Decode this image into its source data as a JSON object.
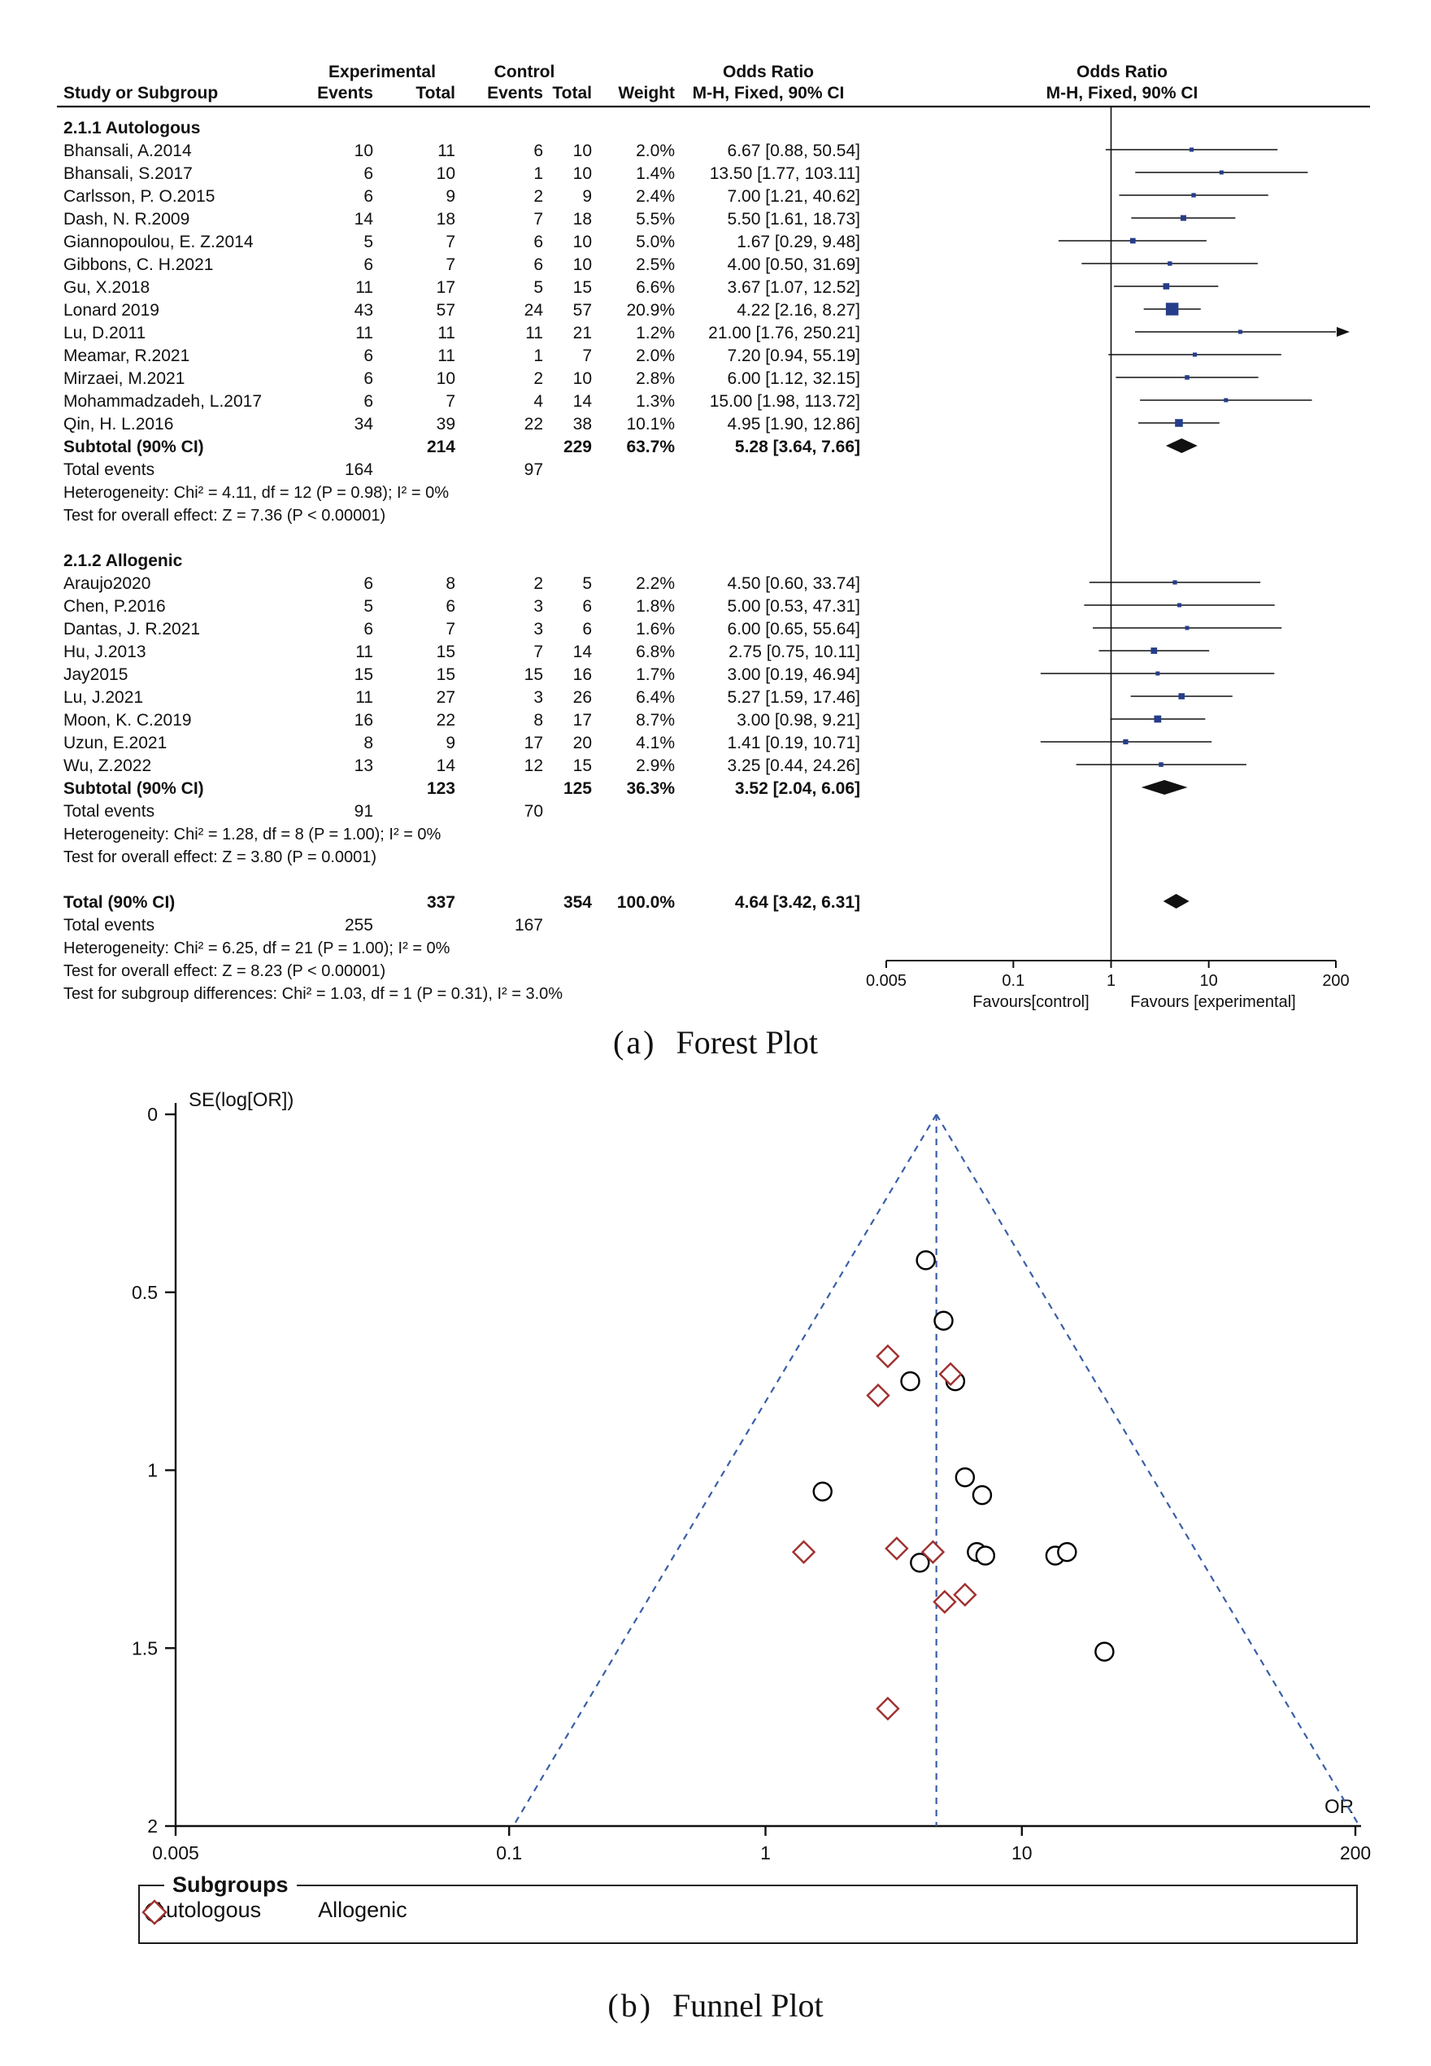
{
  "colors": {
    "text": "#111111",
    "forest_square": "#253D8A",
    "summary_diamond": "#111111",
    "funnel_line": "#3A5FA8",
    "autologous_marker": "#000000",
    "allogenic_marker": "#A03030"
  },
  "captions": {
    "a": {
      "prefix": "(a)",
      "title": "Forest Plot"
    },
    "b": {
      "prefix": "(b)",
      "title": "Funnel Plot"
    }
  },
  "chart_data": [
    {
      "type": "table",
      "subtype": "forest-plot",
      "title": "Forest Plot",
      "effect_measure": "Odds Ratio M-H, Fixed, 90% CI",
      "headers": {
        "group_experimental": "Experimental",
        "group_control": "Control",
        "study": "Study or Subgroup",
        "events": "Events",
        "total": "Total",
        "weight": "Weight",
        "odds_ratio": "Odds Ratio",
        "method": "M-H, Fixed, 90% CI"
      },
      "rows": [
        {
          "type": "section",
          "label": "2.1.1 Autologous"
        },
        {
          "type": "study",
          "label": "Bhansali, A.2014",
          "ee": "10",
          "et": "11",
          "ce": "6",
          "ct": "10",
          "w": "2.0%",
          "ci": "6.67 [0.88, 50.54]",
          "or": 6.67,
          "lo": 0.88,
          "hi": 50.54,
          "wv": 2.0
        },
        {
          "type": "study",
          "label": "Bhansali, S.2017",
          "ee": "6",
          "et": "10",
          "ce": "1",
          "ct": "10",
          "w": "1.4%",
          "ci": "13.50 [1.77, 103.11]",
          "or": 13.5,
          "lo": 1.77,
          "hi": 103.11,
          "wv": 1.4
        },
        {
          "type": "study",
          "label": "Carlsson, P. O.2015",
          "ee": "6",
          "et": "9",
          "ce": "2",
          "ct": "9",
          "w": "2.4%",
          "ci": "7.00 [1.21, 40.62]",
          "or": 7.0,
          "lo": 1.21,
          "hi": 40.62,
          "wv": 2.4
        },
        {
          "type": "study",
          "label": "Dash, N. R.2009",
          "ee": "14",
          "et": "18",
          "ce": "7",
          "ct": "18",
          "w": "5.5%",
          "ci": "5.50 [1.61, 18.73]",
          "or": 5.5,
          "lo": 1.61,
          "hi": 18.73,
          "wv": 5.5
        },
        {
          "type": "study",
          "label": "Giannopoulou, E. Z.2014",
          "ee": "5",
          "et": "7",
          "ce": "6",
          "ct": "10",
          "w": "5.0%",
          "ci": "1.67 [0.29, 9.48]",
          "or": 1.67,
          "lo": 0.29,
          "hi": 9.48,
          "wv": 5.0
        },
        {
          "type": "study",
          "label": "Gibbons, C. H.2021",
          "ee": "6",
          "et": "7",
          "ce": "6",
          "ct": "10",
          "w": "2.5%",
          "ci": "4.00 [0.50, 31.69]",
          "or": 4.0,
          "lo": 0.5,
          "hi": 31.69,
          "wv": 2.5
        },
        {
          "type": "study",
          "label": "Gu, X.2018",
          "ee": "11",
          "et": "17",
          "ce": "5",
          "ct": "15",
          "w": "6.6%",
          "ci": "3.67 [1.07, 12.52]",
          "or": 3.67,
          "lo": 1.07,
          "hi": 12.52,
          "wv": 6.6
        },
        {
          "type": "study",
          "label": "Lonard 2019",
          "ee": "43",
          "et": "57",
          "ce": "24",
          "ct": "57",
          "w": "20.9%",
          "ci": "4.22 [2.16, 8.27]",
          "or": 4.22,
          "lo": 2.16,
          "hi": 8.27,
          "wv": 20.9
        },
        {
          "type": "study",
          "label": "Lu, D.2011",
          "ee": "11",
          "et": "11",
          "ce": "11",
          "ct": "21",
          "w": "1.2%",
          "ci": "21.00 [1.76, 250.21]",
          "or": 21.0,
          "lo": 1.76,
          "hi": 250.21,
          "wv": 1.2
        },
        {
          "type": "study",
          "label": "Meamar, R.2021",
          "ee": "6",
          "et": "11",
          "ce": "1",
          "ct": "7",
          "w": "2.0%",
          "ci": "7.20 [0.94, 55.19]",
          "or": 7.2,
          "lo": 0.94,
          "hi": 55.19,
          "wv": 2.0
        },
        {
          "type": "study",
          "label": "Mirzaei, M.2021",
          "ee": "6",
          "et": "10",
          "ce": "2",
          "ct": "10",
          "w": "2.8%",
          "ci": "6.00 [1.12, 32.15]",
          "or": 6.0,
          "lo": 1.12,
          "hi": 32.15,
          "wv": 2.8
        },
        {
          "type": "study",
          "label": "Mohammadzadeh, L.2017",
          "ee": "6",
          "et": "7",
          "ce": "4",
          "ct": "14",
          "w": "1.3%",
          "ci": "15.00 [1.98, 113.72]",
          "or": 15.0,
          "lo": 1.98,
          "hi": 113.72,
          "wv": 1.3
        },
        {
          "type": "study",
          "label": "Qin, H. L.2016",
          "ee": "34",
          "et": "39",
          "ce": "22",
          "ct": "38",
          "w": "10.1%",
          "ci": "4.95 [1.90, 12.86]",
          "or": 4.95,
          "lo": 1.9,
          "hi": 12.86,
          "wv": 10.1
        },
        {
          "type": "subtotal",
          "label": "Subtotal (90% CI)",
          "et": "214",
          "ct": "229",
          "w": "63.7%",
          "ci": "5.28 [3.64, 7.66]",
          "or": 5.28,
          "lo": 3.64,
          "hi": 7.66
        },
        {
          "type": "events",
          "label": "Total events",
          "ee": "164",
          "ce": "97"
        },
        {
          "type": "note",
          "label": "Heterogeneity: Chi² = 4.11, df = 12 (P = 0.98); I² = 0%"
        },
        {
          "type": "note",
          "label": "Test for overall effect: Z = 7.36 (P < 0.00001)"
        },
        {
          "type": "blank"
        },
        {
          "type": "section",
          "label": "2.1.2 Allogenic"
        },
        {
          "type": "study",
          "label": "Araujo2020",
          "ee": "6",
          "et": "8",
          "ce": "2",
          "ct": "5",
          "w": "2.2%",
          "ci": "4.50 [0.60, 33.74]",
          "or": 4.5,
          "lo": 0.6,
          "hi": 33.74,
          "wv": 2.2
        },
        {
          "type": "study",
          "label": "Chen, P.2016",
          "ee": "5",
          "et": "6",
          "ce": "3",
          "ct": "6",
          "w": "1.8%",
          "ci": "5.00 [0.53, 47.31]",
          "or": 5.0,
          "lo": 0.53,
          "hi": 47.31,
          "wv": 1.8
        },
        {
          "type": "study",
          "label": "Dantas, J. R.2021",
          "ee": "6",
          "et": "7",
          "ce": "3",
          "ct": "6",
          "w": "1.6%",
          "ci": "6.00 [0.65, 55.64]",
          "or": 6.0,
          "lo": 0.65,
          "hi": 55.64,
          "wv": 1.6
        },
        {
          "type": "study",
          "label": "Hu, J.2013",
          "ee": "11",
          "et": "15",
          "ce": "7",
          "ct": "14",
          "w": "6.8%",
          "ci": "2.75 [0.75, 10.11]",
          "or": 2.75,
          "lo": 0.75,
          "hi": 10.11,
          "wv": 6.8
        },
        {
          "type": "study",
          "label": "Jay2015",
          "ee": "15",
          "et": "15",
          "ce": "15",
          "ct": "16",
          "w": "1.7%",
          "ci": "3.00 [0.19, 46.94]",
          "or": 3.0,
          "lo": 0.19,
          "hi": 46.94,
          "wv": 1.7
        },
        {
          "type": "study",
          "label": "Lu, J.2021",
          "ee": "11",
          "et": "27",
          "ce": "3",
          "ct": "26",
          "w": "6.4%",
          "ci": "5.27 [1.59, 17.46]",
          "or": 5.27,
          "lo": 1.59,
          "hi": 17.46,
          "wv": 6.4
        },
        {
          "type": "study",
          "label": "Moon, K. C.2019",
          "ee": "16",
          "et": "22",
          "ce": "8",
          "ct": "17",
          "w": "8.7%",
          "ci": "3.00 [0.98, 9.21]",
          "or": 3.0,
          "lo": 0.98,
          "hi": 9.21,
          "wv": 8.7
        },
        {
          "type": "study",
          "label": "Uzun, E.2021",
          "ee": "8",
          "et": "9",
          "ce": "17",
          "ct": "20",
          "w": "4.1%",
          "ci": "1.41 [0.19, 10.71]",
          "or": 1.41,
          "lo": 0.19,
          "hi": 10.71,
          "wv": 4.1
        },
        {
          "type": "study",
          "label": "Wu, Z.2022",
          "ee": "13",
          "et": "14",
          "ce": "12",
          "ct": "15",
          "w": "2.9%",
          "ci": "3.25 [0.44, 24.26]",
          "or": 3.25,
          "lo": 0.44,
          "hi": 24.26,
          "wv": 2.9
        },
        {
          "type": "subtotal",
          "label": "Subtotal (90% CI)",
          "et": "123",
          "ct": "125",
          "w": "36.3%",
          "ci": "3.52 [2.04, 6.06]",
          "or": 3.52,
          "lo": 2.04,
          "hi": 6.06
        },
        {
          "type": "events",
          "label": "Total events",
          "ee": "91",
          "ce": "70"
        },
        {
          "type": "note",
          "label": "Heterogeneity: Chi² = 1.28, df = 8 (P = 1.00); I² = 0%"
        },
        {
          "type": "note",
          "label": "Test for overall effect: Z = 3.80 (P = 0.0001)"
        },
        {
          "type": "blank"
        },
        {
          "type": "subtotal",
          "label": "Total (90% CI)",
          "et": "337",
          "ct": "354",
          "w": "100.0%",
          "ci": "4.64 [3.42, 6.31]",
          "or": 4.64,
          "lo": 3.42,
          "hi": 6.31
        },
        {
          "type": "events",
          "label": "Total events",
          "ee": "255",
          "ce": "167"
        },
        {
          "type": "note",
          "label": "Heterogeneity: Chi² = 6.25, df = 21 (P = 1.00); I² = 0%"
        },
        {
          "type": "note",
          "label": "Test for overall effect: Z = 8.23 (P < 0.00001)"
        },
        {
          "type": "note",
          "label": "Test for subgroup differences: Chi² = 1.03, df = 1 (P = 0.31), I² = 3.0%"
        }
      ],
      "axis": {
        "scale": "log",
        "ticks": [
          {
            "v": 0.005,
            "label": "0.005"
          },
          {
            "v": 0.1,
            "label": "0.1"
          },
          {
            "v": 1,
            "label": "1"
          },
          {
            "v": 10,
            "label": "10"
          },
          {
            "v": 200,
            "label": "200"
          }
        ],
        "left_label": "Favours[control]",
        "right_label": "Favours [experimental]"
      }
    },
    {
      "type": "scatter",
      "subtype": "funnel-plot",
      "title": "Funnel Plot",
      "ylabel": "SE(log[OR])",
      "xlabel": "OR",
      "xscale": "log",
      "xlim": [
        0.005,
        200
      ],
      "ylim": [
        0,
        2
      ],
      "center_or": 4.64,
      "yticks": [
        {
          "v": 0,
          "label": "0"
        },
        {
          "v": 0.5,
          "label": "0.5"
        },
        {
          "v": 1,
          "label": "1"
        },
        {
          "v": 1.5,
          "label": "1.5"
        },
        {
          "v": 2,
          "label": "2"
        }
      ],
      "xticks": [
        {
          "v": 0.005,
          "label": "0.005"
        },
        {
          "v": 0.1,
          "label": "0.1"
        },
        {
          "v": 1,
          "label": "1"
        },
        {
          "v": 10,
          "label": "10"
        },
        {
          "v": 200,
          "label": "200"
        }
      ],
      "series": [
        {
          "name": "Autologous",
          "marker": "circle",
          "color": "#000000",
          "points": [
            {
              "or": 4.22,
              "se": 0.41
            },
            {
              "or": 4.95,
              "se": 0.58
            },
            {
              "or": 5.5,
              "se": 0.75
            },
            {
              "or": 3.67,
              "se": 0.75
            },
            {
              "or": 6.0,
              "se": 1.02
            },
            {
              "or": 1.67,
              "se": 1.06
            },
            {
              "or": 7.0,
              "se": 1.07
            },
            {
              "or": 6.67,
              "se": 1.23
            },
            {
              "or": 7.2,
              "se": 1.24
            },
            {
              "or": 13.5,
              "se": 1.24
            },
            {
              "or": 15.0,
              "se": 1.23
            },
            {
              "or": 4.0,
              "se": 1.26
            },
            {
              "or": 21.0,
              "se": 1.51
            }
          ]
        },
        {
          "name": "Allogenic",
          "marker": "diamond",
          "color": "#A03030",
          "points": [
            {
              "or": 3.0,
              "se": 0.68
            },
            {
              "or": 5.27,
              "se": 0.73
            },
            {
              "or": 2.75,
              "se": 0.79
            },
            {
              "or": 3.25,
              "se": 1.22
            },
            {
              "or": 4.5,
              "se": 1.23
            },
            {
              "or": 1.41,
              "se": 1.23
            },
            {
              "or": 5.0,
              "se": 1.37
            },
            {
              "or": 6.0,
              "se": 1.35
            },
            {
              "or": 3.0,
              "se": 1.67
            }
          ]
        }
      ],
      "legend": {
        "title": "Subgroups",
        "items": [
          {
            "label": "Autologous",
            "marker": "circle"
          },
          {
            "label": "Allogenic",
            "marker": "diamond"
          }
        ]
      }
    }
  ]
}
